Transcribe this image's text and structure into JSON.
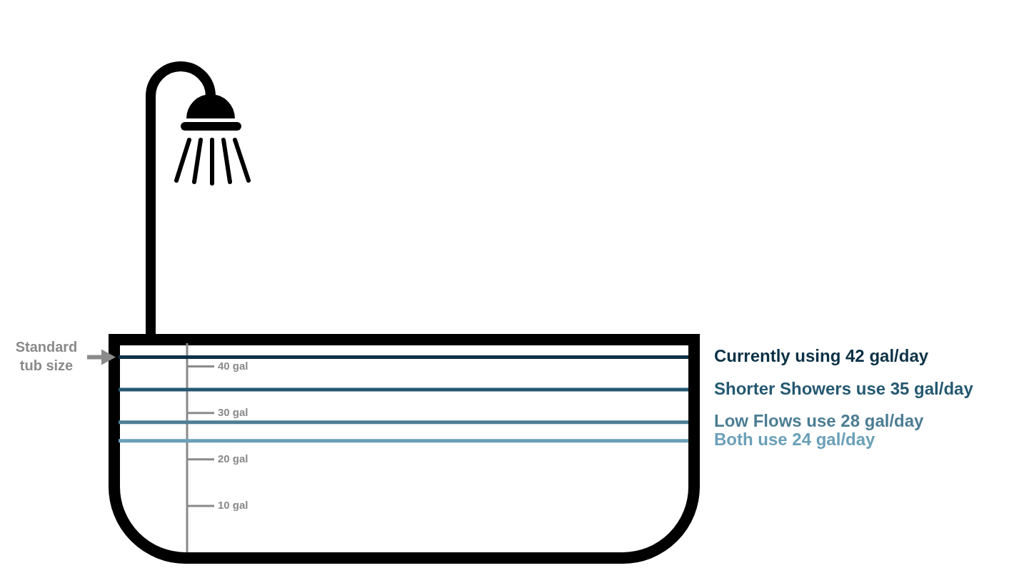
{
  "chart_data": {
    "type": "line",
    "annotation": "Standard tub size",
    "series": [
      {
        "name": "Currently using 42 gal/day",
        "color": "#0b3146",
        "values": [
          42
        ]
      },
      {
        "name": "Shorter Showers use 35 gal/day",
        "color": "#245870",
        "values": [
          35
        ]
      },
      {
        "name": "Low Flows use 28 gal/day",
        "color": "#4b7d93",
        "values": [
          28
        ]
      },
      {
        "name": "Both use 24 gal/day",
        "color": "#6aa0b8",
        "values": [
          24
        ]
      }
    ],
    "ylim": [
      0,
      45
    ],
    "yticks": [
      {
        "value": 10,
        "label": "10 gal"
      },
      {
        "value": 20,
        "label": "20 gal"
      },
      {
        "value": 30,
        "label": "30 gal"
      },
      {
        "value": 40,
        "label": "40 gal"
      }
    ],
    "grid": false
  }
}
